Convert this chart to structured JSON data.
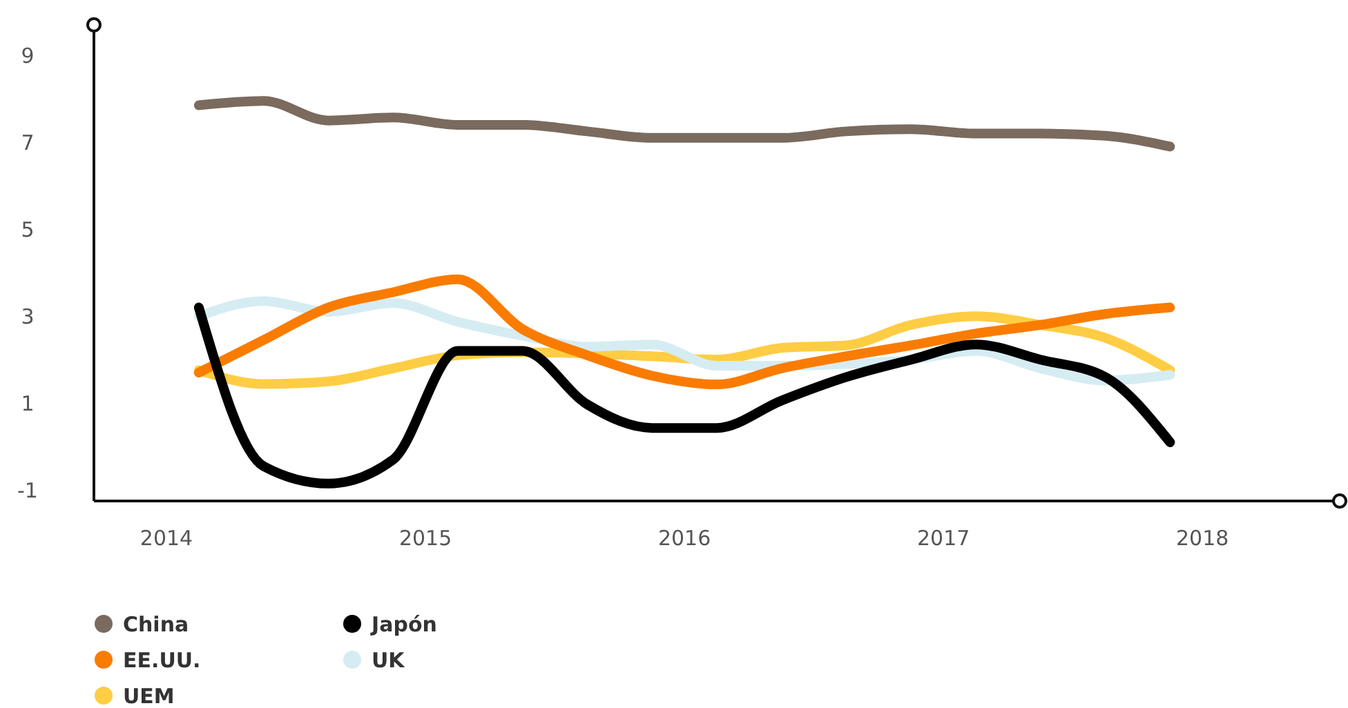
{
  "chart_data": {
    "type": "line",
    "x": [
      2014.125,
      2014.375,
      2014.625,
      2014.875,
      2015.125,
      2015.375,
      2015.625,
      2015.875,
      2016.125,
      2016.375,
      2016.625,
      2016.875,
      2017.125,
      2017.375,
      2017.625,
      2017.875
    ],
    "series": [
      {
        "name": "China",
        "color": "#7b6a5e",
        "values": [
          7.85,
          7.95,
          7.5,
          7.57,
          7.4,
          7.4,
          7.25,
          7.1,
          7.1,
          7.1,
          7.25,
          7.3,
          7.2,
          7.2,
          7.15,
          6.9
        ]
      },
      {
        "name": "Japón",
        "color": "#000000",
        "values": [
          3.2,
          -0.45,
          -0.85,
          -0.3,
          2.2,
          2.2,
          0.97,
          0.43,
          0.43,
          1.06,
          1.6,
          2.0,
          2.35,
          2.0,
          1.6,
          0.1
        ]
      },
      {
        "name": "EE.UU.",
        "color": "#f97c00",
        "values": [
          1.7,
          2.45,
          3.2,
          3.55,
          3.85,
          2.7,
          2.1,
          1.63,
          1.43,
          1.8,
          2.08,
          2.33,
          2.6,
          2.8,
          3.05,
          3.2
        ]
      },
      {
        "name": "UK",
        "color": "#d6ecf3",
        "values": [
          3.0,
          3.35,
          3.1,
          3.3,
          2.87,
          2.55,
          2.3,
          2.35,
          1.86,
          1.86,
          1.9,
          2.0,
          2.2,
          1.8,
          1.52,
          1.65
        ]
      },
      {
        "name": "UEM",
        "color": "#ffcd44",
        "values": [
          1.76,
          1.44,
          1.5,
          1.8,
          2.1,
          2.17,
          2.14,
          2.08,
          2.0,
          2.27,
          2.33,
          2.8,
          3.0,
          2.8,
          2.5,
          1.76
        ]
      }
    ],
    "xlim": [
      2013.72,
      2018.53
    ],
    "xticks": [
      2014,
      2015,
      2016,
      2017,
      2018
    ],
    "ylim": [
      -1.25,
      9.7
    ],
    "yticks": [
      -1,
      1,
      3,
      5,
      7,
      9
    ],
    "grid": false,
    "legend": "bottom",
    "marker": "none",
    "line_style": "solid"
  }
}
